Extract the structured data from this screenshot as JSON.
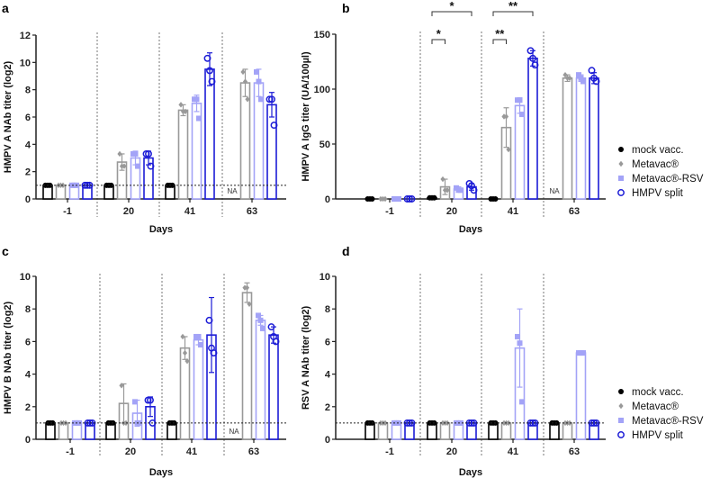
{
  "legend": [
    {
      "name": "mock vacc.",
      "color": "#000000",
      "marker": "filled-circle"
    },
    {
      "name": "Metavac®",
      "color": "#999999",
      "marker": "diamond"
    },
    {
      "name": "Metavac®-RSV",
      "color": "#a3a3f7",
      "marker": "square"
    },
    {
      "name": "HMPV split",
      "color": "#1c1cd6",
      "marker": "open-circle"
    }
  ],
  "chart_data": [
    {
      "panel": "a",
      "type": "bar",
      "ylabel": "HMPV A NAb titer (log2)",
      "xlabel": "Days",
      "categories": [
        "-1",
        "20",
        "41",
        "63"
      ],
      "ylim": [
        0,
        12
      ],
      "yticks": [
        "0",
        "2",
        "4",
        "6",
        "8",
        "10",
        "12"
      ],
      "lod": 1,
      "na_label": "NA",
      "na_group": 3,
      "series": [
        {
          "name": "mock vacc.",
          "values": [
            1,
            1,
            1,
            null
          ],
          "errors": [
            0,
            0,
            0,
            null
          ],
          "points": [
            [
              1,
              1,
              1
            ],
            [
              1,
              1,
              1
            ],
            [
              1,
              1,
              1
            ],
            null
          ]
        },
        {
          "name": "Metavac®",
          "values": [
            1,
            2.7,
            6.5,
            8.5
          ],
          "errors": [
            0,
            0.6,
            0.4,
            1.0
          ],
          "points": [
            [
              1,
              1,
              1
            ],
            [
              3.3,
              2.4,
              2.4
            ],
            [
              6.9,
              6.4,
              6.4
            ],
            [
              9.3,
              8.6,
              7.3
            ]
          ]
        },
        {
          "name": "Metavac®-RSV",
          "values": [
            1,
            3.0,
            7.0,
            8.5
          ],
          "errors": [
            0,
            0.5,
            0.6,
            1.0
          ],
          "points": [
            [
              1,
              1,
              1
            ],
            [
              3.3,
              3.3,
              2.4
            ],
            [
              7.3,
              7.3,
              5.9
            ],
            [
              9.3,
              8.6,
              7.3
            ]
          ]
        },
        {
          "name": "HMPV split",
          "values": [
            1,
            3.0,
            9.5,
            6.9
          ],
          "errors": [
            0,
            0.5,
            1.2,
            0.9
          ],
          "points": [
            [
              1,
              1,
              1
            ],
            [
              3.3,
              3.3,
              2.4
            ],
            [
              10.3,
              9.4,
              8.6
            ],
            [
              7.3,
              7.3,
              5.4
            ]
          ]
        }
      ],
      "annotations": []
    },
    {
      "panel": "b",
      "type": "bar",
      "ylabel": "HMPV A IgG titer (UA/100µl)",
      "xlabel": "Days",
      "categories": [
        "-1",
        "20",
        "41",
        "63"
      ],
      "ylim": [
        0,
        150
      ],
      "yticks": [
        "0",
        "50",
        "100",
        "150"
      ],
      "lod": null,
      "na_label": "NA",
      "na_group": 3,
      "series": [
        {
          "name": "mock vacc.",
          "values": [
            0,
            1,
            0,
            null
          ],
          "errors": [
            0,
            0,
            0,
            null
          ],
          "points": [
            [
              0,
              0,
              0
            ],
            [
              1,
              1,
              1
            ],
            [
              0,
              0,
              0
            ],
            null
          ]
        },
        {
          "name": "Metavac®",
          "values": [
            0,
            11,
            65,
            110
          ],
          "errors": [
            0,
            7,
            18,
            3
          ],
          "points": [
            [
              0,
              0,
              0
            ],
            [
              18,
              8,
              8
            ],
            [
              75,
              75,
              45
            ],
            [
              113,
              110,
              110
            ]
          ]
        },
        {
          "name": "Metavac®-RSV",
          "values": [
            0,
            9,
            85,
            110
          ],
          "errors": [
            0,
            2,
            7,
            3
          ],
          "points": [
            [
              0,
              0,
              0
            ],
            [
              10,
              8,
              8
            ],
            [
              90,
              90,
              77
            ],
            [
              113,
              110,
              107
            ]
          ]
        },
        {
          "name": "HMPV split",
          "values": [
            0,
            11,
            128,
            110
          ],
          "errors": [
            0,
            3,
            7,
            5
          ],
          "points": [
            [
              0,
              0,
              0
            ],
            [
              14,
              12,
              8
            ],
            [
              135,
              128,
              122
            ],
            [
              117,
              110,
              107
            ]
          ]
        }
      ],
      "annotations": [
        {
          "group": 1,
          "from": 0,
          "to": 1,
          "label": "*"
        },
        {
          "group": 1,
          "from": 0,
          "to": 3,
          "label": "*"
        },
        {
          "group": 2,
          "from": 0,
          "to": 1,
          "label": "**"
        },
        {
          "group": 2,
          "from": 0,
          "to": 3,
          "label": "**"
        }
      ]
    },
    {
      "panel": "c",
      "type": "bar",
      "ylabel": "HMPV B NAb titer (log2)",
      "xlabel": "Days",
      "categories": [
        "-1",
        "20",
        "41",
        "63"
      ],
      "ylim": [
        0,
        10
      ],
      "yticks": [
        "0",
        "2",
        "4",
        "6",
        "8",
        "10"
      ],
      "lod": 1,
      "na_label": "NA",
      "na_group": 3,
      "series": [
        {
          "name": "mock vacc.",
          "values": [
            1,
            1,
            1,
            null
          ],
          "errors": [
            0,
            0,
            0,
            null
          ],
          "points": [
            [
              1,
              1,
              1
            ],
            [
              1,
              1,
              1
            ],
            [
              1,
              1,
              1
            ],
            null
          ]
        },
        {
          "name": "Metavac®",
          "values": [
            1,
            2.2,
            5.6,
            9.0
          ],
          "errors": [
            0,
            1.2,
            0.7,
            0.6
          ],
          "points": [
            [
              1,
              1,
              1
            ],
            [
              3.3,
              1,
              1
            ],
            [
              6.3,
              5.3,
              4.8
            ],
            [
              9.3,
              9.3,
              8.3
            ]
          ]
        },
        {
          "name": "Metavac®-RSV",
          "values": [
            1,
            1.6,
            6.1,
            7.3
          ],
          "errors": [
            0,
            0.8,
            0.3,
            0.3
          ],
          "points": [
            [
              1,
              1,
              1
            ],
            [
              2.3,
              1,
              1
            ],
            [
              6.3,
              6.3,
              5.8
            ],
            [
              7.6,
              7.3,
              6.8
            ]
          ]
        },
        {
          "name": "HMPV split",
          "values": [
            1,
            2.0,
            6.4,
            6.4
          ],
          "errors": [
            0,
            0.6,
            2.3,
            0.5
          ],
          "points": [
            [
              1,
              1,
              1
            ],
            [
              2.4,
              2.4,
              1
            ],
            [
              7.3,
              5.6,
              5.3
            ],
            [
              6.9,
              6.3,
              6.0
            ]
          ]
        }
      ],
      "annotations": []
    },
    {
      "panel": "d",
      "type": "bar",
      "ylabel": "RSV A NAb titer (log2)",
      "xlabel": "Days",
      "categories": [
        "-1",
        "20",
        "41",
        "63"
      ],
      "ylim": [
        0,
        10
      ],
      "yticks": [
        "0",
        "2",
        "4",
        "6",
        "8",
        "10"
      ],
      "lod": 1,
      "na_label": null,
      "na_group": null,
      "series": [
        {
          "name": "mock vacc.",
          "values": [
            1,
            1,
            1,
            1
          ],
          "errors": [
            0,
            0,
            0,
            0
          ],
          "points": [
            [
              1,
              1,
              1
            ],
            [
              1,
              1,
              1
            ],
            [
              1,
              1,
              1
            ],
            [
              1,
              1,
              1
            ]
          ]
        },
        {
          "name": "Metavac®",
          "values": [
            1,
            1,
            1,
            1
          ],
          "errors": [
            0,
            0,
            0,
            0
          ],
          "points": [
            [
              1,
              1,
              1
            ],
            [
              1,
              1,
              1
            ],
            [
              1,
              1,
              1
            ],
            [
              1,
              1,
              1
            ]
          ]
        },
        {
          "name": "Metavac®-RSV",
          "values": [
            1,
            1,
            5.6,
            5.3
          ],
          "errors": [
            0,
            0,
            2.4,
            0
          ],
          "points": [
            [
              1,
              1,
              1
            ],
            [
              1,
              1,
              1
            ],
            [
              6.3,
              5.9,
              2.3
            ],
            [
              5.3,
              5.3,
              5.3
            ]
          ]
        },
        {
          "name": "HMPV split",
          "values": [
            1,
            1,
            1,
            1
          ],
          "errors": [
            0,
            0,
            0,
            0
          ],
          "points": [
            [
              1,
              1,
              1
            ],
            [
              1,
              1,
              1
            ],
            [
              1,
              1,
              1
            ],
            [
              1,
              1,
              1
            ]
          ]
        }
      ],
      "annotations": []
    }
  ]
}
